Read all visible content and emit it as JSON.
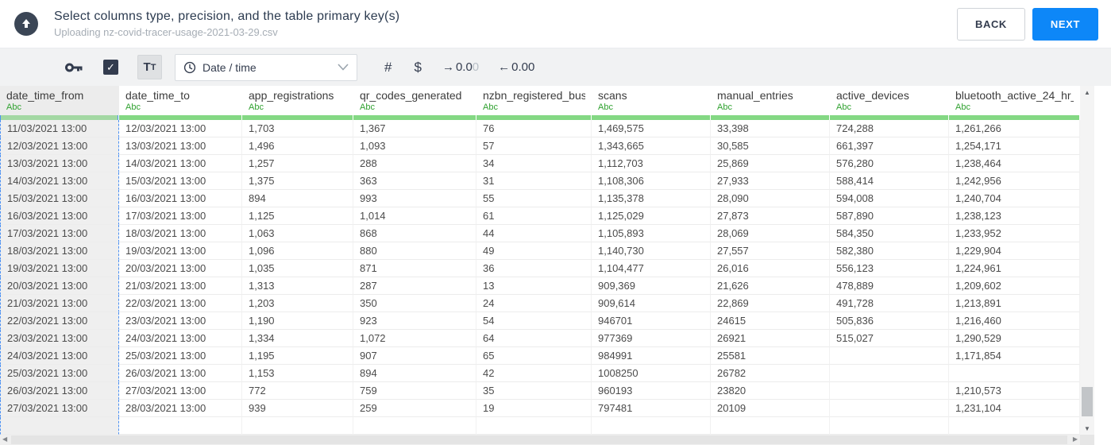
{
  "header": {
    "title": "Select columns type, precision, and the table primary key(s)",
    "subtitle": "Uploading nz-covid-tracer-usage-2021-03-29.csv",
    "back_label": "BACK",
    "next_label": "NEXT"
  },
  "toolbar": {
    "checkbox_checked": true,
    "check_glyph": "✓",
    "text_type_label_big": "T",
    "text_type_label_small": "T",
    "type_dropdown_value": "Date / time",
    "number_label": "#",
    "currency_label": "$",
    "precision_add": {
      "arrow": "→",
      "main": "0.0",
      "faded": "0"
    },
    "precision_remove": {
      "arrow": "←",
      "main": "0.00",
      "faded": ""
    }
  },
  "table": {
    "selected_column_index": 0,
    "columns": [
      {
        "name": "date_time_from",
        "type": "Abc"
      },
      {
        "name": "date_time_to",
        "type": "Abc"
      },
      {
        "name": "app_registrations",
        "type": "Abc"
      },
      {
        "name": "qr_codes_generated",
        "type": "Abc"
      },
      {
        "name": "nzbn_registered_busine",
        "type": "Abc"
      },
      {
        "name": "scans",
        "type": "Abc"
      },
      {
        "name": "manual_entries",
        "type": "Abc"
      },
      {
        "name": "active_devices",
        "type": "Abc"
      },
      {
        "name": "bluetooth_active_24_hr_",
        "type": "Abc"
      }
    ],
    "rows": [
      [
        "11/03/2021 13:00",
        "12/03/2021 13:00",
        "1,703",
        "1,367",
        "76",
        "1,469,575",
        "33,398",
        "724,288",
        "1,261,266"
      ],
      [
        "12/03/2021 13:00",
        "13/03/2021 13:00",
        "1,496",
        "1,093",
        "57",
        "1,343,665",
        "30,585",
        "661,397",
        "1,254,171"
      ],
      [
        "13/03/2021 13:00",
        "14/03/2021 13:00",
        "1,257",
        "288",
        "34",
        "1,112,703",
        "25,869",
        "576,280",
        "1,238,464"
      ],
      [
        "14/03/2021 13:00",
        "15/03/2021 13:00",
        "1,375",
        "363",
        "31",
        "1,108,306",
        "27,933",
        "588,414",
        "1,242,956"
      ],
      [
        "15/03/2021 13:00",
        "16/03/2021 13:00",
        "894",
        "993",
        "55",
        "1,135,378",
        "28,090",
        "594,008",
        "1,240,704"
      ],
      [
        "16/03/2021 13:00",
        "17/03/2021 13:00",
        "1,125",
        "1,014",
        "61",
        "1,125,029",
        "27,873",
        "587,890",
        "1,238,123"
      ],
      [
        "17/03/2021 13:00",
        "18/03/2021 13:00",
        "1,063",
        "868",
        "44",
        "1,105,893",
        "28,069",
        "584,350",
        "1,233,952"
      ],
      [
        "18/03/2021 13:00",
        "19/03/2021 13:00",
        "1,096",
        "880",
        "49",
        "1,140,730",
        "27,557",
        "582,380",
        "1,229,904"
      ],
      [
        "19/03/2021 13:00",
        "20/03/2021 13:00",
        "1,035",
        "871",
        "36",
        "1,104,477",
        "26,016",
        "556,123",
        "1,224,961"
      ],
      [
        "20/03/2021 13:00",
        "21/03/2021 13:00",
        "1,313",
        "287",
        "13",
        "909,369",
        "21,626",
        "478,889",
        "1,209,602"
      ],
      [
        "21/03/2021 13:00",
        "22/03/2021 13:00",
        "1,203",
        "350",
        "24",
        "909,614",
        "22,869",
        "491,728",
        "1,213,891"
      ],
      [
        "22/03/2021 13:00",
        "23/03/2021 13:00",
        "1,190",
        "923",
        "54",
        "946701",
        "24615",
        "505,836",
        "1,216,460"
      ],
      [
        "23/03/2021 13:00",
        "24/03/2021 13:00",
        "1,334",
        "1,072",
        "64",
        "977369",
        "26921",
        "515,027",
        "1,290,529"
      ],
      [
        "24/03/2021 13:00",
        "25/03/2021 13:00",
        "1,195",
        "907",
        "65",
        "984991",
        "25581",
        "",
        "1,171,854"
      ],
      [
        "25/03/2021 13:00",
        "26/03/2021 13:00",
        "1,153",
        "894",
        "42",
        "1008250",
        "26782",
        "",
        ""
      ],
      [
        "26/03/2021 13:00",
        "27/03/2021 13:00",
        "772",
        "759",
        "35",
        "960193",
        "23820",
        "",
        "1,210,573"
      ],
      [
        "27/03/2021 13:00",
        "28/03/2021 13:00",
        "939",
        "259",
        "19",
        "797481",
        "20109",
        "",
        "1,231,104"
      ]
    ]
  },
  "colors": {
    "accent_blue": "#0d87f8",
    "type_green": "#2fa12f",
    "header_bar_green": "#84d884",
    "selection_dash_blue": "#4a90f4",
    "icon_dark": "#333c4e"
  }
}
